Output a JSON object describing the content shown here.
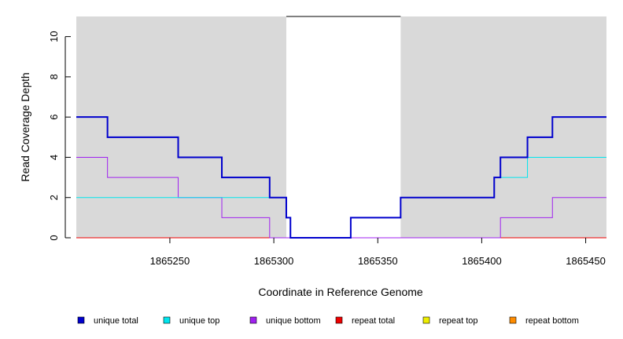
{
  "chart_data": {
    "type": "line",
    "title": "",
    "xlabel": "Coordinate in Reference Genome",
    "ylabel": "Read Coverage Depth",
    "xlim": [
      1865205,
      1865460
    ],
    "ylim": [
      0,
      11
    ],
    "x_ticks": [
      1865250,
      1865300,
      1865350,
      1865400,
      1865450
    ],
    "x_tick_labels": [
      "1865250",
      "1865300",
      "1865350",
      "1865400",
      "1865450"
    ],
    "y_ticks": [
      0,
      2,
      4,
      6,
      8,
      10
    ],
    "y_tick_labels": [
      "0",
      "2",
      "4",
      "6",
      "8",
      "10"
    ],
    "shaded_regions": [
      {
        "from": 1865205,
        "to": 1865306,
        "color": "#d9d9d9"
      },
      {
        "from": 1865361,
        "to": 1865460,
        "color": "#d9d9d9"
      }
    ],
    "gap_region": {
      "from": 1865306,
      "to": 1865361,
      "top_value": 11
    },
    "series": [
      {
        "name": "unique total",
        "color": "#0000cd",
        "width": 2,
        "points": [
          [
            1865205,
            6
          ],
          [
            1865220,
            6
          ],
          [
            1865220,
            5
          ],
          [
            1865254,
            5
          ],
          [
            1865254,
            4
          ],
          [
            1865275,
            4
          ],
          [
            1865275,
            3
          ],
          [
            1865298,
            3
          ],
          [
            1865298,
            2
          ],
          [
            1865306,
            2
          ],
          [
            1865306,
            1
          ],
          [
            1865308,
            1
          ],
          [
            1865308,
            0
          ],
          [
            1865337,
            0
          ],
          [
            1865337,
            1
          ],
          [
            1865361,
            1
          ],
          [
            1865361,
            2
          ],
          [
            1865406,
            2
          ],
          [
            1865406,
            3
          ],
          [
            1865409,
            3
          ],
          [
            1865409,
            4
          ],
          [
            1865422,
            4
          ],
          [
            1865422,
            5
          ],
          [
            1865434,
            5
          ],
          [
            1865434,
            6
          ],
          [
            1865460,
            6
          ]
        ]
      },
      {
        "name": "unique top",
        "color": "#00e5ee",
        "width": 1,
        "points": [
          [
            1865205,
            2
          ],
          [
            1865306,
            2
          ],
          [
            1865306,
            1
          ],
          [
            1865308,
            1
          ],
          [
            1865308,
            0
          ],
          [
            1865337,
            0
          ],
          [
            1865337,
            1
          ],
          [
            1865361,
            1
          ],
          [
            1865361,
            2
          ],
          [
            1865406,
            2
          ],
          [
            1865406,
            3
          ],
          [
            1865422,
            3
          ],
          [
            1865422,
            4
          ],
          [
            1865460,
            4
          ]
        ]
      },
      {
        "name": "unique bottom",
        "color": "#a020f0",
        "width": 1,
        "points": [
          [
            1865205,
            4
          ],
          [
            1865220,
            4
          ],
          [
            1865220,
            3
          ],
          [
            1865254,
            3
          ],
          [
            1865254,
            2
          ],
          [
            1865275,
            2
          ],
          [
            1865275,
            1
          ],
          [
            1865298,
            1
          ],
          [
            1865298,
            0
          ],
          [
            1865409,
            0
          ],
          [
            1865409,
            1
          ],
          [
            1865434,
            1
          ],
          [
            1865434,
            2
          ],
          [
            1865460,
            2
          ]
        ]
      },
      {
        "name": "repeat total",
        "color": "#ee0000",
        "width": 1,
        "points": [
          [
            1865205,
            0
          ],
          [
            1865460,
            0
          ]
        ]
      },
      {
        "name": "repeat top",
        "color": "#eeee00",
        "width": 1,
        "points": [
          [
            1865205,
            0
          ],
          [
            1865460,
            0
          ]
        ]
      },
      {
        "name": "repeat bottom",
        "color": "#ff8c00",
        "width": 1,
        "points": [
          [
            1865205,
            0
          ],
          [
            1865460,
            0
          ]
        ]
      }
    ],
    "legend": {
      "placement": "bottom",
      "entries": [
        {
          "label": "unique total",
          "color": "#0000cd"
        },
        {
          "label": "unique top",
          "color": "#00e5ee"
        },
        {
          "label": "unique bottom",
          "color": "#a020f0"
        },
        {
          "label": "repeat total",
          "color": "#ee0000"
        },
        {
          "label": "repeat top",
          "color": "#eeee00"
        },
        {
          "label": "repeat bottom",
          "color": "#ff8c00"
        }
      ]
    }
  }
}
